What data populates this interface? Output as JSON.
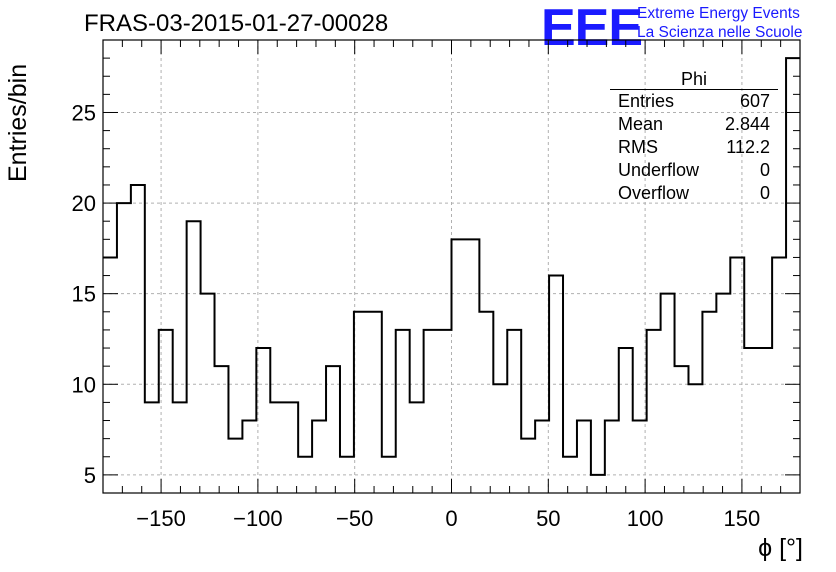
{
  "header": {
    "run_title": "FRAS-03-2015-01-27-00028",
    "logo_mark": "EEE",
    "logo_line1": "Extreme Energy Events",
    "logo_line2": "La Scienza nelle Scuole"
  },
  "stats_box": {
    "name": "Phi",
    "rows": [
      {
        "label": "Entries",
        "value": "607"
      },
      {
        "label": "Mean",
        "value": "2.844"
      },
      {
        "label": "RMS",
        "value": "112.2"
      },
      {
        "label": "Underflow",
        "value": "0"
      },
      {
        "label": "Overflow",
        "value": "0"
      }
    ]
  },
  "chart_data": {
    "type": "histogram",
    "title": "FRAS-03-2015-01-27-00028",
    "xlabel": "ϕ [°]",
    "ylabel": "Entries/bin",
    "xlim": [
      -180,
      180
    ],
    "ylim": [
      4,
      29
    ],
    "bin_width": 7.2,
    "grid": true,
    "x_ticks": [
      -150,
      -100,
      -50,
      0,
      50,
      100,
      150
    ],
    "x_tick_labels": [
      "−150",
      "−100",
      "−50",
      "0",
      "50",
      "100",
      "150"
    ],
    "y_ticks": [
      5,
      10,
      15,
      20,
      25
    ],
    "y_tick_labels": [
      "5",
      "10",
      "15",
      "20",
      "25"
    ],
    "values": [
      17,
      20,
      21,
      9,
      13,
      9,
      19,
      15,
      11,
      7,
      8,
      12,
      9,
      9,
      6,
      8,
      11,
      6,
      14,
      14,
      6,
      13,
      9,
      13,
      13,
      18,
      18,
      14,
      10,
      13,
      7,
      8,
      16,
      6,
      8,
      5,
      8,
      12,
      8,
      13,
      15,
      11,
      10,
      14,
      15,
      17,
      12,
      12,
      17,
      28
    ],
    "line_color": "#000000",
    "grid_color": "#b0b0b0"
  }
}
